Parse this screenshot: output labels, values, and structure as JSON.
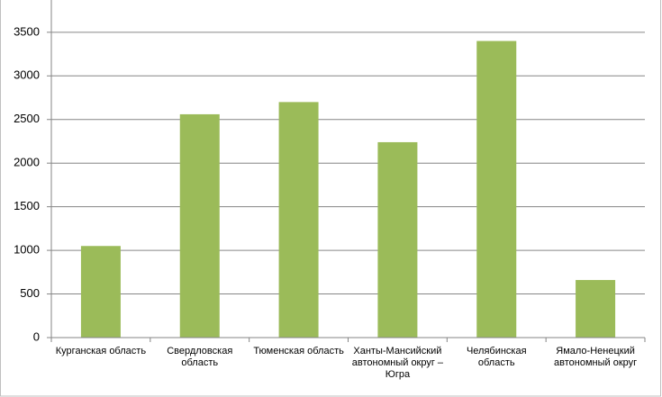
{
  "chart_data": {
    "type": "bar",
    "categories": [
      "Курганская область",
      "Свердловская область",
      "Тюменская область",
      "Ханты-Мансийский автономный округ – Югра",
      "Челябинская область",
      "Ямало-Ненецкий автономный округ"
    ],
    "values": [
      1050,
      2560,
      2700,
      2240,
      3400,
      660
    ],
    "color": "#9bbb59",
    "ylim": [
      0,
      3870
    ],
    "yticks": [
      0,
      500,
      1000,
      1500,
      2000,
      2500,
      3000,
      3500
    ],
    "grid": true
  }
}
